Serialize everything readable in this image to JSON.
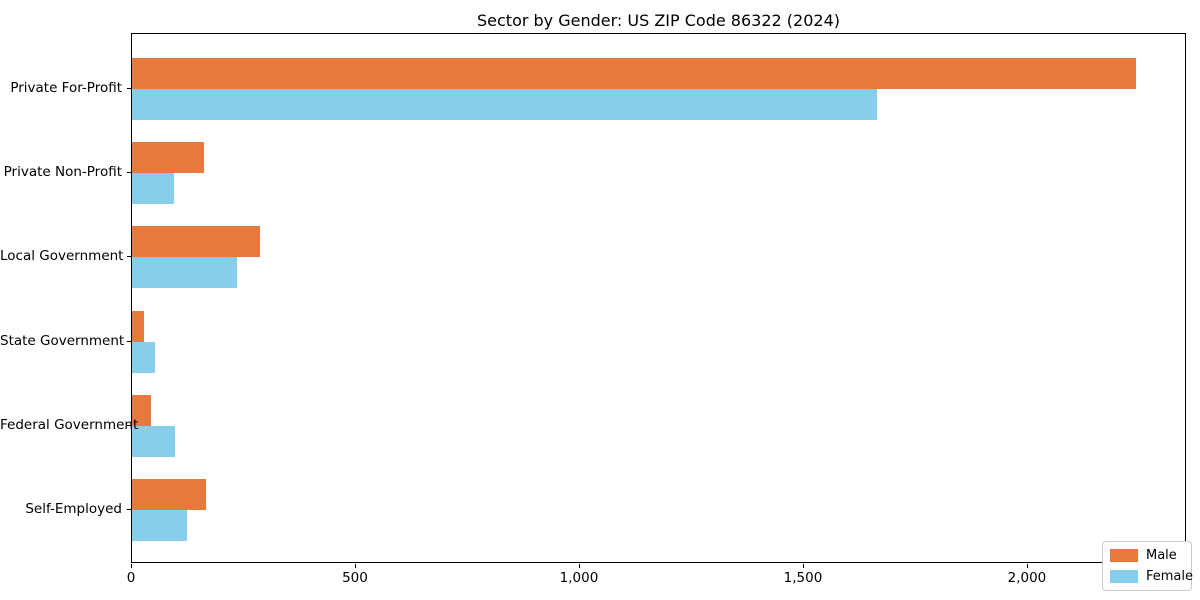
{
  "chart_data": {
    "type": "bar",
    "orientation": "horizontal",
    "title": "Sector by Gender: US ZIP Code 86322 (2024)",
    "categories": [
      "Private For-Profit",
      "Private Non-Profit",
      "Local Government",
      "State Government",
      "Federal Government",
      "Self-Employed"
    ],
    "series": [
      {
        "name": "Male",
        "color": "#E8793E",
        "values": [
          2241,
          160,
          286,
          26,
          42,
          165
        ]
      },
      {
        "name": "Female",
        "color": "#87CEEB",
        "values": [
          1663,
          94,
          234,
          52,
          95,
          123
        ]
      }
    ],
    "xlabel": "",
    "ylabel": "",
    "xlim": [
      0,
      2355
    ],
    "xticks": [
      0,
      500,
      1000,
      1500,
      2000
    ],
    "xticklabels": [
      "0",
      "500",
      "1,000",
      "1,500",
      "2,000"
    ],
    "grid": false,
    "legend_position": "lower right",
    "plot_background": "#ffffff",
    "spine_color": "#000000"
  }
}
